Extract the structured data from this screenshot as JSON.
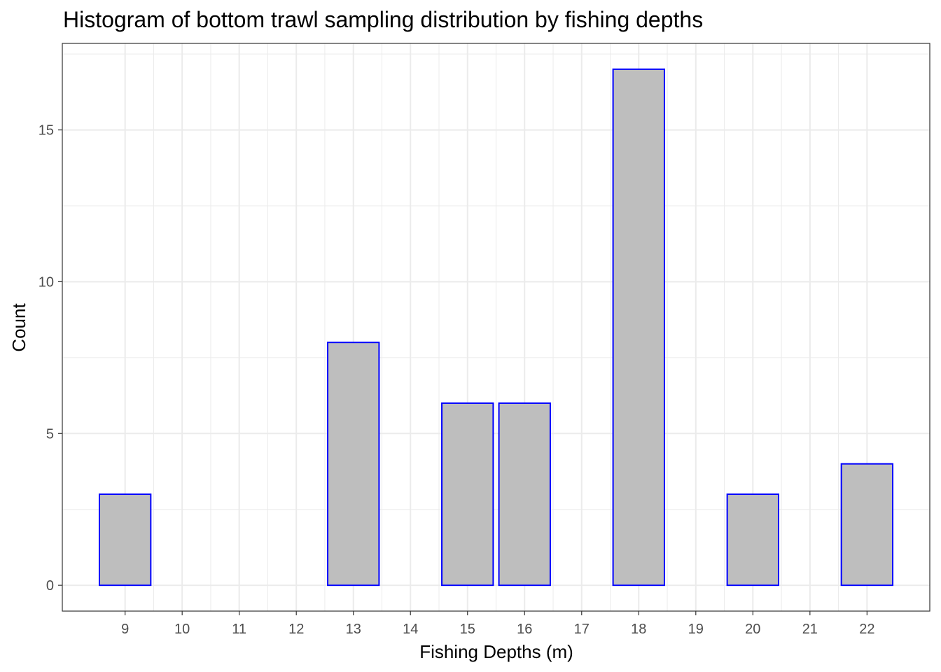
{
  "chart_data": {
    "type": "bar",
    "title": "Histogram of bottom trawl sampling distribution by fishing depths",
    "xlabel": "Fishing Depths (m)",
    "ylabel": "Count",
    "x_ticks": [
      9,
      10,
      11,
      12,
      13,
      14,
      15,
      16,
      17,
      18,
      19,
      20,
      21,
      22
    ],
    "y_ticks": [
      0,
      5,
      10,
      15
    ],
    "xlim": [
      7.9,
      23.1
    ],
    "ylim": [
      -0.85,
      17.85
    ],
    "bars": [
      {
        "x": 9,
        "count": 3
      },
      {
        "x": 13,
        "count": 8
      },
      {
        "x": 15,
        "count": 6
      },
      {
        "x": 16,
        "count": 6
      },
      {
        "x": 18,
        "count": 17
      },
      {
        "x": 20,
        "count": 3
      },
      {
        "x": 22,
        "count": 4
      }
    ],
    "bar_fill": "#bebebe",
    "bar_outline": "#0000ff",
    "grid": true,
    "grid_color": "#ebebeb",
    "panel_border_color": "#333333"
  }
}
